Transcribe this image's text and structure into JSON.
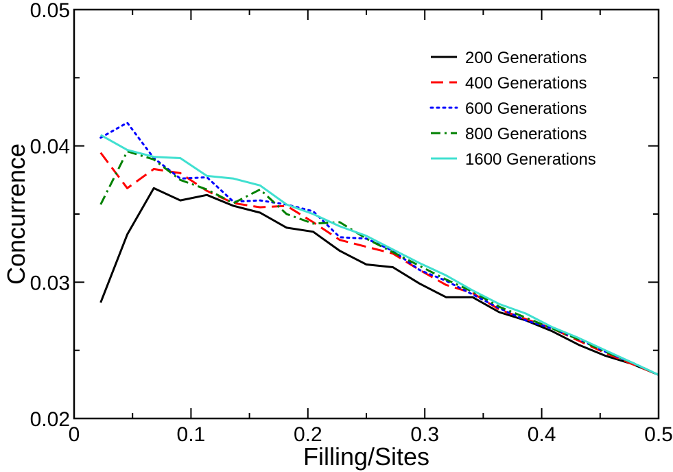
{
  "chart_data": {
    "type": "line",
    "title": "",
    "xlabel": "Filling/Sites",
    "ylabel": "Concurrence",
    "xlim": [
      0,
      0.5
    ],
    "ylim": [
      0.02,
      0.05
    ],
    "x_major_ticks": [
      0,
      0.1,
      0.2,
      0.3,
      0.4,
      0.5
    ],
    "x_tick_labels": [
      "0",
      "0.1",
      "0.2",
      "0.3",
      "0.4",
      "0.5"
    ],
    "y_major_ticks": [
      0.02,
      0.03,
      0.04,
      0.05
    ],
    "y_tick_labels": [
      "0.02",
      "0.03",
      "0.04",
      "0.05"
    ],
    "x_minor_step": 0.05,
    "y_minor_step": 0.005,
    "grid": false,
    "legend_position": "top-right",
    "x": [
      0.0227,
      0.0455,
      0.0682,
      0.0909,
      0.1136,
      0.1364,
      0.1591,
      0.1818,
      0.2045,
      0.2273,
      0.25,
      0.2727,
      0.2955,
      0.3182,
      0.3409,
      0.3636,
      0.3864,
      0.4091,
      0.4318,
      0.4545,
      0.4773,
      0.5
    ],
    "series": [
      {
        "name": "200 Generations",
        "color": "#000000",
        "dash": "solid",
        "values": [
          0.0285,
          0.0335,
          0.0369,
          0.036,
          0.0364,
          0.0356,
          0.0351,
          0.034,
          0.0337,
          0.0323,
          0.0313,
          0.0311,
          0.0299,
          0.0289,
          0.0289,
          0.0278,
          0.0272,
          0.0264,
          0.0254,
          0.0246,
          0.024,
          0.0232
        ]
      },
      {
        "name": "400 Generations",
        "color": "#ff0000",
        "dash": "dashed",
        "values": [
          0.0395,
          0.0369,
          0.0383,
          0.038,
          0.0367,
          0.0358,
          0.0355,
          0.0356,
          0.0344,
          0.0331,
          0.0326,
          0.0321,
          0.0309,
          0.0298,
          0.0292,
          0.028,
          0.0273,
          0.0266,
          0.0257,
          0.0248,
          0.024,
          0.0232
        ]
      },
      {
        "name": "600 Generations",
        "color": "#0000ff",
        "dash": "dotted",
        "values": [
          0.0406,
          0.0417,
          0.0391,
          0.0376,
          0.0377,
          0.0359,
          0.036,
          0.0357,
          0.0352,
          0.0333,
          0.0332,
          0.0323,
          0.0309,
          0.0301,
          0.0291,
          0.0281,
          0.0272,
          0.0266,
          0.0258,
          0.0249,
          0.0241,
          0.0232
        ]
      },
      {
        "name": "800 Generations",
        "color": "#008000",
        "dash": "dash-dot",
        "values": [
          0.0357,
          0.0396,
          0.039,
          0.0375,
          0.0368,
          0.0358,
          0.0368,
          0.035,
          0.0343,
          0.0344,
          0.0332,
          0.0322,
          0.0312,
          0.0302,
          0.0293,
          0.0282,
          0.0274,
          0.0266,
          0.0258,
          0.0249,
          0.0241,
          0.0232
        ]
      },
      {
        "name": "1600 Generations",
        "color": "#40e0d0",
        "dash": "solid",
        "values": [
          0.0408,
          0.0397,
          0.0392,
          0.0391,
          0.0378,
          0.0376,
          0.0371,
          0.0357,
          0.035,
          0.0341,
          0.0334,
          0.0324,
          0.0314,
          0.0305,
          0.0294,
          0.0284,
          0.0277,
          0.0267,
          0.0259,
          0.025,
          0.0241,
          0.0232
        ]
      }
    ]
  }
}
